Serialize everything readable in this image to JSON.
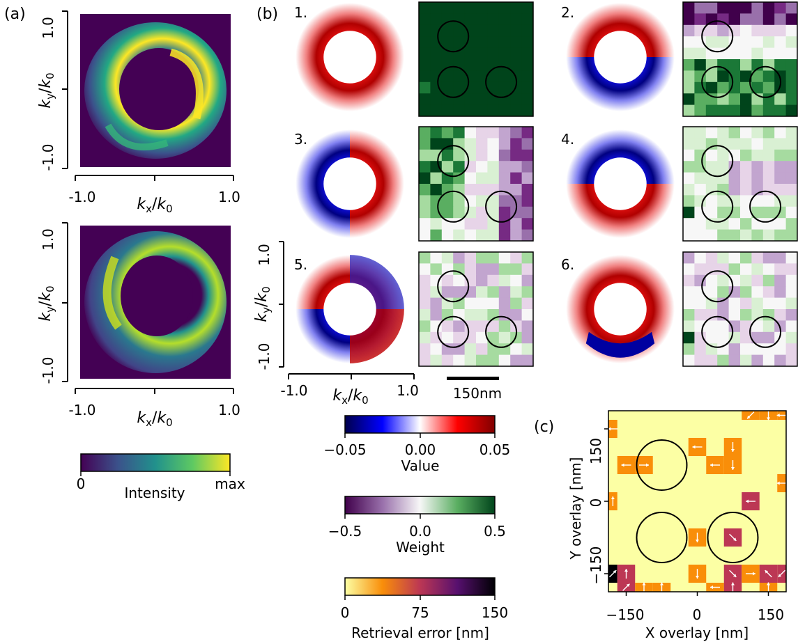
{
  "panels": {
    "a": {
      "label": "(a)",
      "x_label_base": "k",
      "x_label_sub": "x",
      "y_label_base": "k",
      "y_label_sub": "y",
      "denom_base": "k",
      "denom_sub": "0",
      "ticks": [
        "-1.0",
        "1.0"
      ],
      "colorbar": {
        "label": "Intensity",
        "min": "0",
        "max": "max",
        "colormap": "viridis"
      }
    },
    "b": {
      "label": "(b)",
      "components": [
        {
          "n": "1.",
          "pattern": "ring-red",
          "weights": "uniform-dark"
        },
        {
          "n": "2.",
          "pattern": "ring-blue-bottom",
          "weights": "purple-top-green-bottom"
        },
        {
          "n": "3.",
          "pattern": "blue-left-red-right",
          "weights": "green-left-purple-right"
        },
        {
          "n": "4.",
          "pattern": "blue-top-red-bottom",
          "weights": "mixed"
        },
        {
          "n": "5.",
          "pattern": "quadrupole",
          "weights": "mixed-weak"
        },
        {
          "n": "6.",
          "pattern": "red-top-blue-bottom",
          "weights": "mixed-weak"
        }
      ],
      "axis_ticks": [
        "1.0",
        "-1.0"
      ],
      "x_ticks": [
        "-1.0",
        "1.0"
      ],
      "scalebar_label": "150nm",
      "value_colorbar": {
        "label": "Value",
        "ticks": [
          "−0.05",
          "0.00",
          "0.05"
        ],
        "colors": [
          "#00008b",
          "#ffffff",
          "#8b0000"
        ]
      },
      "weight_colorbar": {
        "label": "Weight",
        "ticks": [
          "−0.5",
          "0.0",
          "0.5"
        ],
        "colors": [
          "#40004b",
          "#f7f7f7",
          "#00441b"
        ]
      },
      "error_colorbar": {
        "label": "Retrieval error [nm]",
        "ticks": [
          "0",
          "75",
          "150"
        ],
        "colormap": "inferno_r"
      }
    },
    "c": {
      "label": "(c)",
      "xlabel": "X overlay [nm]",
      "ylabel": "Y overlay [nm]",
      "x_ticks": [
        "−150",
        "0",
        "150"
      ],
      "y_ticks": [
        "150",
        "0",
        "−150"
      ]
    }
  },
  "chart_data": [
    {
      "type": "heatmap",
      "panel": "(c)",
      "title": "",
      "xlabel": "X overlay [nm]",
      "ylabel": "Y overlay [nm]",
      "xlim": [
        -187.5,
        187.5
      ],
      "ylim": [
        -187.5,
        187.5
      ],
      "grid_step_nm": 37.5,
      "value_unit": "Retrieval error [nm]",
      "value_range": [
        0,
        150
      ],
      "background_error": 0,
      "cells": [
        {
          "x": 150,
          "y": 187.5,
          "error": 40,
          "arrow": "down"
        },
        {
          "x": 187.5,
          "y": 187.5,
          "error": 40,
          "arrow": "left"
        },
        {
          "x": 112.5,
          "y": 187.5,
          "error": 50,
          "arrow": "down-left"
        },
        {
          "x": -187.5,
          "y": 150,
          "error": 40,
          "arrow": "left"
        },
        {
          "x": 0,
          "y": 112.5,
          "error": 40,
          "arrow": "left"
        },
        {
          "x": 75,
          "y": 112.5,
          "error": 40,
          "arrow": "down"
        },
        {
          "x": -150,
          "y": 75,
          "error": 40,
          "arrow": "left"
        },
        {
          "x": -112.5,
          "y": 75,
          "error": 40,
          "arrow": "right"
        },
        {
          "x": 37.5,
          "y": 75,
          "error": 40,
          "arrow": "left"
        },
        {
          "x": 75,
          "y": 75,
          "error": 40,
          "arrow": "down"
        },
        {
          "x": 187.5,
          "y": 37.5,
          "error": 40,
          "arrow": "left"
        },
        {
          "x": -187.5,
          "y": 0,
          "error": 40,
          "arrow": "up"
        },
        {
          "x": 112.5,
          "y": 0,
          "error": 80,
          "arrow": "left"
        },
        {
          "x": 0,
          "y": -75,
          "error": 40,
          "arrow": "down"
        },
        {
          "x": 75,
          "y": -75,
          "error": 60,
          "arrow": "down-right"
        },
        {
          "x": -187.5,
          "y": -150,
          "error": 145,
          "arrow": "up-right"
        },
        {
          "x": -150,
          "y": -150,
          "error": 60,
          "arrow": "up"
        },
        {
          "x": 0,
          "y": -150,
          "error": 40,
          "arrow": "down"
        },
        {
          "x": 75,
          "y": -150,
          "error": 60,
          "arrow": "down-right"
        },
        {
          "x": 112.5,
          "y": -150,
          "error": 40,
          "arrow": "right"
        },
        {
          "x": 150,
          "y": -150,
          "error": 60,
          "arrow": "up-left"
        },
        {
          "x": 187.5,
          "y": -150,
          "error": 60,
          "arrow": "down-left"
        },
        {
          "x": -150,
          "y": -187.5,
          "error": 60,
          "arrow": "up-right"
        },
        {
          "x": -75,
          "y": -187.5,
          "error": 40,
          "arrow": "up"
        },
        {
          "x": 37.5,
          "y": -187.5,
          "error": 40,
          "arrow": "left"
        },
        {
          "x": 75,
          "y": -187.5,
          "error": 60,
          "arrow": "up"
        },
        {
          "x": -112.5,
          "y": -187.5,
          "error": 40,
          "arrow": "up"
        },
        {
          "x": 150,
          "y": -187.5,
          "error": 40,
          "arrow": "up"
        },
        {
          "x": -187.5,
          "y": -225,
          "error": 110,
          "arrow": "up-right"
        },
        {
          "x": 0,
          "y": -225,
          "error": 40,
          "arrow": "down"
        },
        {
          "x": 112.5,
          "y": -225,
          "error": 60,
          "arrow": "up"
        },
        {
          "x": 187.5,
          "y": -225,
          "error": 60,
          "arrow": "down-right"
        }
      ]
    }
  ]
}
